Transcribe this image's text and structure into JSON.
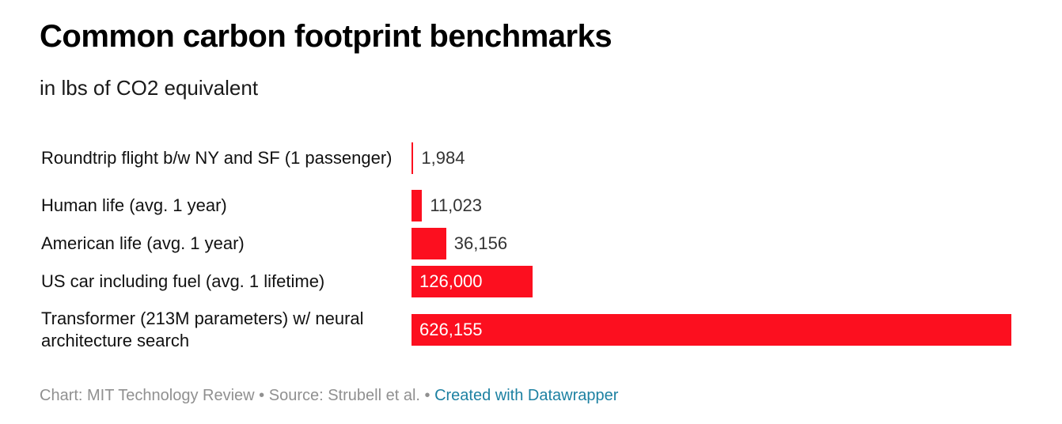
{
  "chart_data": {
    "type": "bar",
    "orientation": "horizontal",
    "title": "Common carbon footprint benchmarks",
    "subtitle": "in lbs of CO2 equivalent",
    "categories": [
      "Roundtrip flight b/w NY and SF (1 passenger)",
      "Human life (avg. 1 year)",
      "American life (avg. 1 year)",
      "US car including fuel (avg. 1 lifetime)",
      "Transformer (213M parameters) w/ neural architecture search"
    ],
    "values": [
      1984,
      11023,
      36156,
      126000,
      626155
    ],
    "value_labels": [
      "1,984",
      "11,023",
      "36,156",
      "126,000",
      "626,155"
    ],
    "xlim": [
      0,
      626155
    ],
    "bar_color": "#fc0f1f",
    "grid": false,
    "legend": "none"
  },
  "footer": {
    "credit": "Chart: MIT Technology Review",
    "separator": " • ",
    "source": "Source: Strubell et al.",
    "link_text": "Created with Datawrapper",
    "link_color": "#1d81a2"
  }
}
